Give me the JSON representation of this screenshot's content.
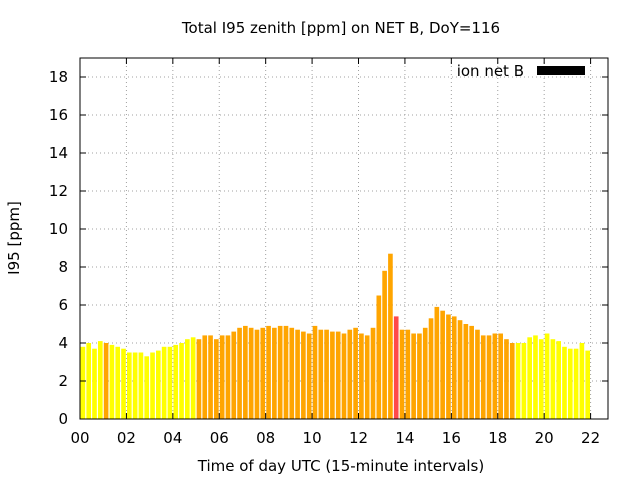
{
  "chart_data": {
    "type": "bar",
    "title": "Total I95 zenith [ppm] on NET B, DoY=116",
    "xlabel": "Time of day UTC (15-minute intervals)",
    "ylabel": "I95 [ppm]",
    "ylim": [
      0,
      19
    ],
    "y_ticks": [
      "0",
      "2",
      "4",
      "6",
      "8",
      "10",
      "12",
      "14",
      "16",
      "18"
    ],
    "x_range_hours": [
      0,
      22.75
    ],
    "x_ticks": [
      {
        "hour": 0,
        "label": "00"
      },
      {
        "hour": 2,
        "label": "02"
      },
      {
        "hour": 4,
        "label": "04"
      },
      {
        "hour": 6,
        "label": "06"
      },
      {
        "hour": 8,
        "label": "08"
      },
      {
        "hour": 10,
        "label": "10"
      },
      {
        "hour": 12,
        "label": "12"
      },
      {
        "hour": 14,
        "label": "14"
      },
      {
        "hour": 16,
        "label": "16"
      },
      {
        "hour": 18,
        "label": "18"
      },
      {
        "hour": 20,
        "label": "20"
      },
      {
        "hour": 22,
        "label": "22"
      }
    ],
    "grid": true,
    "legend": {
      "position": "top-right",
      "label": "ion net B",
      "color": "#000000"
    },
    "colors": {
      "low": "#ffff00",
      "mid": "#ffa500",
      "high": "#ff4a4a"
    },
    "bar_interval_hours": 0.25,
    "values": [
      3.8,
      4.0,
      3.7,
      4.1,
      4.0,
      3.9,
      3.8,
      3.7,
      3.5,
      3.5,
      3.5,
      3.3,
      3.5,
      3.6,
      3.8,
      3.8,
      3.9,
      4.0,
      4.2,
      4.3,
      4.2,
      4.4,
      4.4,
      4.2,
      4.4,
      4.4,
      4.6,
      4.8,
      4.9,
      4.8,
      4.7,
      4.8,
      4.9,
      4.8,
      4.9,
      4.9,
      4.8,
      4.7,
      4.6,
      4.5,
      4.9,
      4.7,
      4.7,
      4.6,
      4.6,
      4.5,
      4.7,
      4.8,
      4.5,
      4.4,
      4.8,
      6.5,
      7.8,
      8.7,
      5.4,
      4.7,
      4.7,
      4.5,
      4.5,
      4.8,
      5.3,
      5.9,
      5.7,
      5.5,
      5.4,
      5.2,
      5.0,
      4.9,
      4.7,
      4.4,
      4.4,
      4.5,
      4.5,
      4.2,
      4.0,
      4.0,
      4.0,
      4.3,
      4.4,
      4.2,
      4.5,
      4.2,
      4.1,
      3.8,
      3.7,
      3.7,
      4.0,
      3.6
    ],
    "bar_colors": [
      "low",
      "low",
      "low",
      "low",
      "mid",
      "low",
      "low",
      "low",
      "low",
      "low",
      "low",
      "low",
      "low",
      "low",
      "low",
      "low",
      "low",
      "low",
      "low",
      "low",
      "mid",
      "mid",
      "mid",
      "mid",
      "mid",
      "mid",
      "mid",
      "mid",
      "mid",
      "mid",
      "mid",
      "mid",
      "mid",
      "mid",
      "mid",
      "mid",
      "mid",
      "mid",
      "mid",
      "mid",
      "mid",
      "mid",
      "mid",
      "mid",
      "mid",
      "mid",
      "mid",
      "mid",
      "mid",
      "mid",
      "mid",
      "mid",
      "mid",
      "mid",
      "high",
      "mid",
      "mid",
      "mid",
      "mid",
      "mid",
      "mid",
      "mid",
      "mid",
      "mid",
      "mid",
      "mid",
      "mid",
      "mid",
      "mid",
      "mid",
      "mid",
      "mid",
      "mid",
      "mid",
      "mid",
      "low",
      "low",
      "low",
      "low",
      "low",
      "low",
      "low",
      "low",
      "low",
      "low",
      "low",
      "low",
      "low"
    ]
  }
}
